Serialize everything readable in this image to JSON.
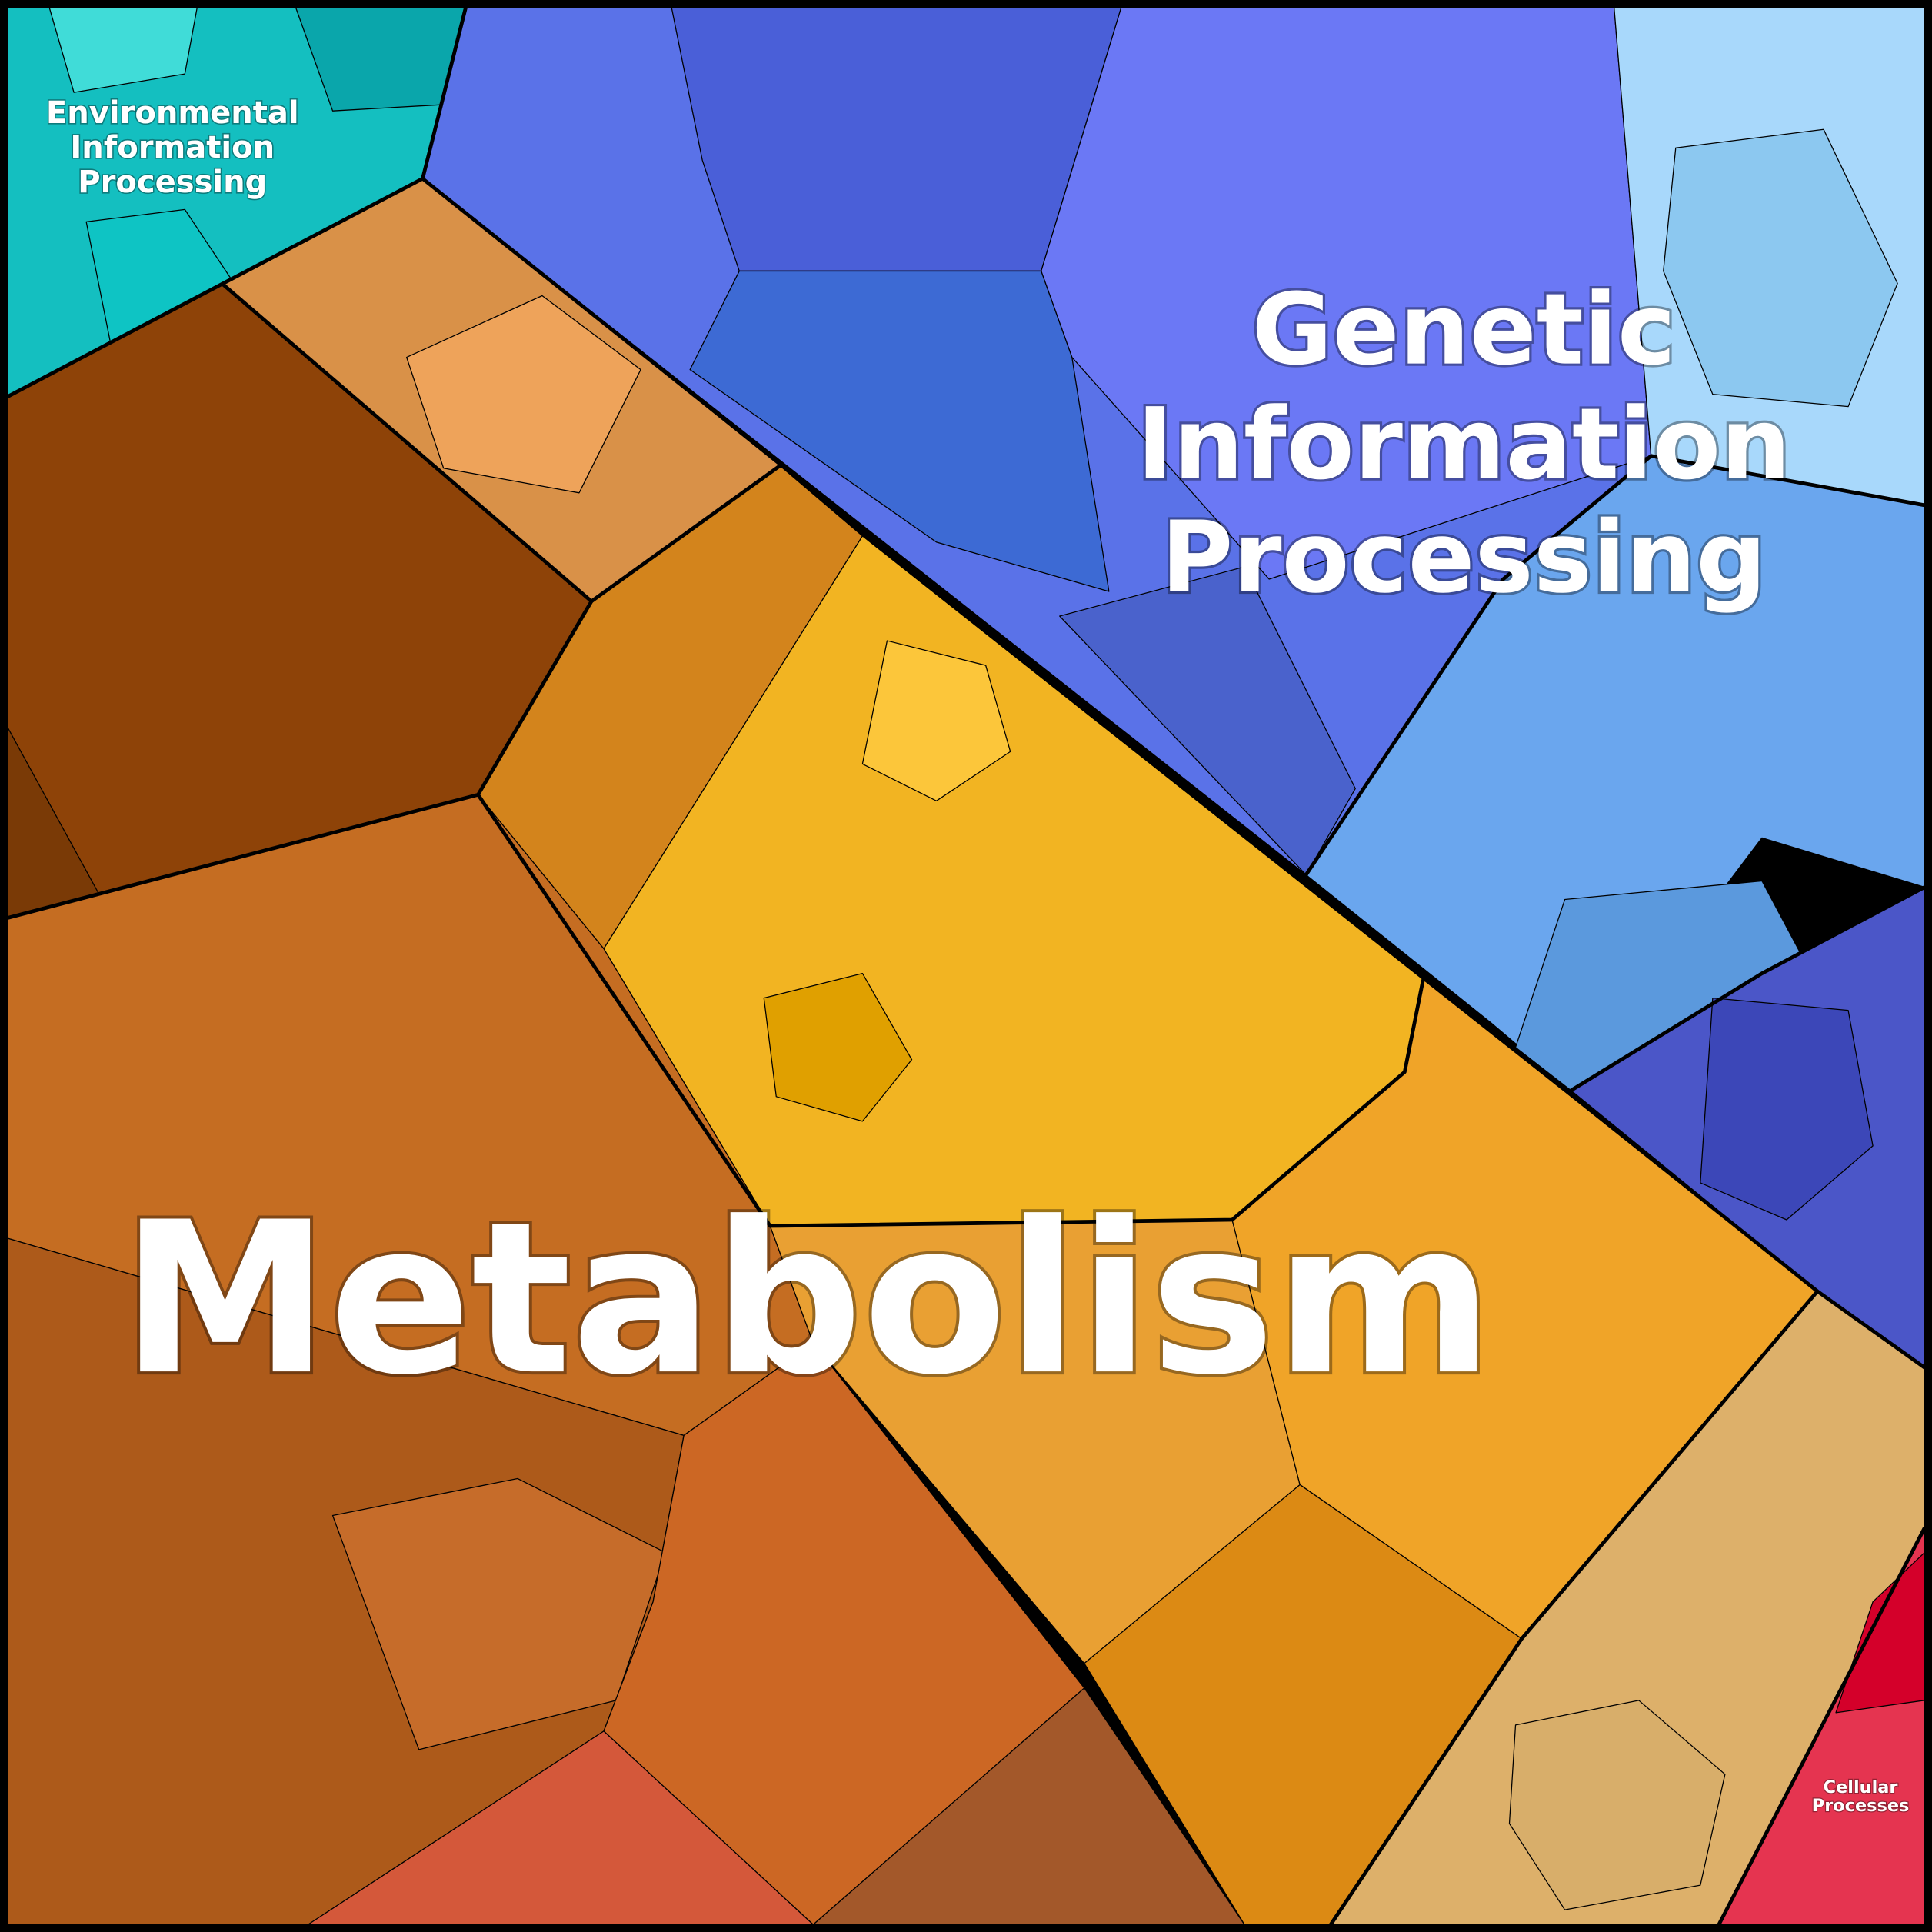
{
  "regions": [
    {
      "label": [
        "Environmental",
        "Information",
        "Processing"
      ]
    },
    {
      "label": [
        "Genetic",
        "Information",
        "Processing"
      ]
    },
    {
      "label": [
        "Metabolism"
      ]
    },
    {
      "label": [
        "Cellular",
        "Processes"
      ]
    }
  ]
}
